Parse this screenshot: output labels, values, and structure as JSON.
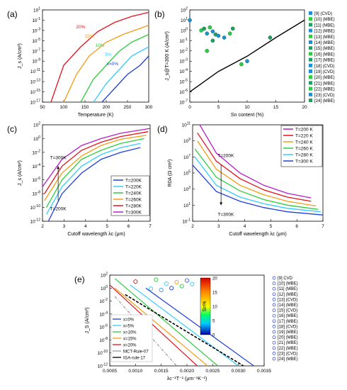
{
  "figure": {
    "panels": [
      {
        "id": "a",
        "label": "(a)"
      },
      {
        "id": "b",
        "label": "(b)"
      },
      {
        "id": "c",
        "label": "(c)"
      },
      {
        "id": "d",
        "label": "(d)"
      },
      {
        "id": "e",
        "label": "(e)"
      }
    ]
  },
  "chart_data": [
    {
      "id": "a",
      "type": "line",
      "xlabel": "Temperature (K)",
      "ylabel": "J_s (A/cm²)",
      "xlim": [
        50,
        300
      ],
      "ylim": [
        1e-17,
        1000.0
      ],
      "log_y": true,
      "xticks": [
        "50",
        "100",
        "150",
        "200",
        "250",
        "300"
      ],
      "yticks": [
        "10^1",
        "10^-1",
        "10^-3",
        "10^-5",
        "10^-7",
        "10^-9",
        "10^-11",
        "10^-13",
        "10^-15",
        "10^-17"
      ],
      "series": [
        {
          "name": "20%",
          "color": "#e0141c",
          "x": [
            70,
            100,
            140,
            180,
            220,
            260,
            300
          ],
          "y": [
            1e-17,
            1e-09,
            1e-05,
            0.02,
            2,
            40,
            300
          ]
        },
        {
          "name": "15%",
          "color": "#f39c12",
          "x": [
            100,
            130,
            160,
            200,
            240,
            280,
            300
          ],
          "y": [
            1e-17,
            1e-11,
            1e-07,
            0.0001,
            0.005,
            0.1,
            0.5
          ]
        },
        {
          "name": "10%",
          "color": "#2ecc40",
          "x": [
            140,
            170,
            200,
            230,
            260,
            300
          ],
          "y": [
            1e-17,
            1e-12,
            1e-09,
            1e-06,
            0.0001,
            0.005
          ]
        },
        {
          "name": "5%",
          "color": "#33ccff",
          "x": [
            170,
            200,
            230,
            260,
            300
          ],
          "y": [
            1e-17,
            1e-13,
            1e-10,
            1e-07,
            1e-05
          ]
        },
        {
          "name": "x=0%",
          "color": "#1f3fd8",
          "x": [
            190,
            220,
            250,
            280,
            300
          ],
          "y": [
            1e-17,
            1e-14,
            1e-11,
            1e-09,
            1e-07
          ]
        }
      ]
    },
    {
      "id": "b",
      "type": "scatter",
      "xlabel": "Sn content (%)",
      "ylabel": "J_s@T=300 K (A/cm²)",
      "xlim": [
        0,
        20
      ],
      "ylim": [
        1e-07,
        100
      ],
      "log_y": true,
      "xticks": [
        "0",
        "5",
        "10",
        "15",
        "20"
      ],
      "yticks": [
        "10^2",
        "10^1",
        "10^0",
        "10^-1",
        "10^-2",
        "10^-3",
        "10^-4",
        "10^-5",
        "10^-6",
        "10^-7"
      ],
      "line": {
        "x": [
          0,
          5,
          10,
          15,
          20
        ],
        "y": [
          1e-06,
          0.0001,
          0.003,
          0.2,
          10
        ]
      },
      "legend": [
        "[9] (CVD)",
        "[10] (MBE)",
        "[11] (MBE)",
        "[12] (MBE)",
        "[13] (MBE)",
        "[14] (MBE)",
        "[15] (MBE)",
        "[16] (MBE)",
        "[17] (MBE)",
        "[18] (CVD)",
        "[19] (CVD)",
        "[20] (MBE)",
        "[21] (MBE)",
        "[22] (MBE)",
        "[23] (CVD)",
        "[24] (MBE)"
      ],
      "points": [
        {
          "x": 0,
          "y": 10
        },
        {
          "x": 2,
          "y": 1
        },
        {
          "x": 2.5,
          "y": 1.5
        },
        {
          "x": 3,
          "y": 0.5
        },
        {
          "x": 3.5,
          "y": 2
        },
        {
          "x": 4,
          "y": 0.8
        },
        {
          "x": 4,
          "y": 0.1
        },
        {
          "x": 3,
          "y": 0.01
        },
        {
          "x": 4.5,
          "y": 0.4
        },
        {
          "x": 5,
          "y": 0.3
        },
        {
          "x": 6,
          "y": 0.2
        },
        {
          "x": 7,
          "y": 0.5
        },
        {
          "x": 7.5,
          "y": 1.5
        },
        {
          "x": 9,
          "y": 0.0005
        },
        {
          "x": 10,
          "y": 0.001
        },
        {
          "x": 14,
          "y": 0.2
        }
      ]
    },
    {
      "id": "c",
      "type": "line",
      "xlabel": "Cutoff wavelength λc (μm)",
      "ylabel": "J_s (A/cm²)",
      "xlim": [
        1.5,
        7
      ],
      "ylim": [
        1e-12,
        100.0
      ],
      "log_y": true,
      "xticks": [
        "2",
        "3",
        "4",
        "5",
        "6",
        "7"
      ],
      "yticks": [
        "10^2",
        "10^0",
        "10^-2",
        "10^-4",
        "10^-6",
        "10^-8",
        "10^-10",
        "10^-12"
      ],
      "annotations": [
        "T=300K",
        "T=200K"
      ],
      "series": [
        {
          "name": "T=200K",
          "color": "#1f3fd8",
          "x": [
            1.8,
            2.5,
            3.5,
            4.5,
            5.5,
            6.5
          ],
          "y": [
            1e-12,
            1e-08,
            1e-05,
            0.001,
            0.01,
            0.05
          ]
        },
        {
          "name": "T=220K",
          "color": "#33ccff",
          "x": [
            1.7,
            2.5,
            3.5,
            4.5,
            5.5,
            6.5
          ],
          "y": [
            1e-11,
            1e-07,
            0.0001,
            0.005,
            0.05,
            0.2
          ]
        },
        {
          "name": "T=240K",
          "color": "#2ecc40",
          "x": [
            1.7,
            2.5,
            3.5,
            4.5,
            5.5,
            6.7
          ],
          "y": [
            1e-10,
            1e-06,
            0.001,
            0.02,
            0.2,
            1
          ]
        },
        {
          "name": "T=260K",
          "color": "#f39c12",
          "x": [
            1.6,
            2.5,
            3.5,
            4.5,
            5.5,
            6.8
          ],
          "y": [
            1e-09,
            1e-05,
            0.003,
            0.1,
            0.8,
            3
          ]
        },
        {
          "name": "T=280K",
          "color": "#e0141c",
          "x": [
            1.6,
            2.5,
            3.5,
            4.5,
            5.5,
            6.9
          ],
          "y": [
            1e-08,
            0.0001,
            0.02,
            0.3,
            2,
            10
          ]
        },
        {
          "name": "T=300K",
          "color": "#b41ec8",
          "x": [
            1.5,
            2.5,
            3.5,
            4.5,
            5.5,
            7
          ],
          "y": [
            1e-07,
            0.001,
            0.1,
            1,
            6,
            30
          ]
        }
      ]
    },
    {
      "id": "d",
      "type": "line",
      "xlabel": "Cutoff wavelength λc (μm)",
      "ylabel": "R0A (Ω cm²)",
      "xlim": [
        1.5,
        7
      ],
      "ylim": [
        0.1,
        100000000000.0
      ],
      "log_y": true,
      "xticks": [
        "2",
        "3",
        "4",
        "5",
        "6",
        "7"
      ],
      "yticks": [
        "10^11",
        "10^9",
        "10^7",
        "10^5",
        "10^3",
        "10^1",
        "10^-1"
      ],
      "annotations": [
        "T=200K",
        "T=300K"
      ],
      "series": [
        {
          "name": "T=200 K",
          "color": "#b41ec8",
          "x": [
            1.8,
            2.5,
            3.5,
            4.5,
            5.5,
            6.5
          ],
          "y": [
            100000000000.0,
            30000000.0,
            100000.0,
            3000.0,
            300,
            80
          ]
        },
        {
          "name": "T=220 K",
          "color": "#e0141c",
          "x": [
            1.7,
            2.5,
            3.5,
            4.5,
            5.5,
            6.5
          ],
          "y": [
            10000000000.0,
            3000000.0,
            20000.0,
            800,
            100,
            30
          ]
        },
        {
          "name": "T=240 K",
          "color": "#f39c12",
          "x": [
            1.7,
            2.5,
            3.5,
            4.5,
            5.5,
            6.7
          ],
          "y": [
            1000000000.0,
            300000.0,
            3000.0,
            200,
            30,
            8
          ]
        },
        {
          "name": "T=260 K",
          "color": "#2ecc40",
          "x": [
            1.6,
            2.5,
            3.5,
            4.5,
            5.5,
            6.8
          ],
          "y": [
            100000000.0,
            30000.0,
            600,
            50,
            10,
            3
          ]
        },
        {
          "name": "T=280 K",
          "color": "#33ccff",
          "x": [
            1.6,
            2.5,
            3.5,
            4.5,
            5.5,
            6.9
          ],
          "y": [
            10000000.0,
            3000.0,
            100,
            15,
            4,
            1.5
          ]
        },
        {
          "name": "T=300 K",
          "color": "#1f3fd8",
          "x": [
            1.5,
            2.5,
            3.5,
            4.5,
            5.5,
            7
          ],
          "y": [
            1000000.0,
            500,
            30,
            5,
            1.5,
            0.6
          ]
        }
      ]
    },
    {
      "id": "e",
      "type": "scatter",
      "xlabel": "λc⁻¹T⁻¹ (μm⁻¹K⁻¹)",
      "ylabel": "J_S (A/cm²)",
      "xlim": [
        0.0005,
        0.0035
      ],
      "ylim": [
        1e-12,
        100.0
      ],
      "log_y": true,
      "xticks": [
        "0.0005",
        "0.0010",
        "0.0015",
        "0.0020",
        "0.0025",
        "0.0030",
        "0.0035"
      ],
      "yticks": [
        "10^2",
        "10^0",
        "10^-2",
        "10^-4",
        "10^-6",
        "10^-8",
        "10^-10",
        "10^-12"
      ],
      "colorbar": {
        "title": "Sn%",
        "ticks": [
          "20",
          "15",
          "10",
          "5",
          "0"
        ]
      },
      "line_legend": [
        "x=0%",
        "x=5%",
        "x=10%",
        "x=15%",
        "x=20%",
        "MCT-Rule-07",
        "IGA-rule-17"
      ],
      "line_colors": [
        "#1f3fd8",
        "#33ccff",
        "#2ecc40",
        "#f39c12",
        "#e0141c",
        "#999999",
        "#000000"
      ],
      "lines": [
        {
          "x": [
            0.0012,
            0.0033
          ],
          "y": [
            1,
            1e-12
          ]
        },
        {
          "x": [
            0.0009,
            0.003
          ],
          "y": [
            3,
            1e-12
          ]
        },
        {
          "x": [
            0.0006,
            0.0026
          ],
          "y": [
            30,
            1e-12
          ]
        },
        {
          "x": [
            0.0006,
            0.0024
          ],
          "y": [
            1,
            1e-12
          ]
        },
        {
          "x": [
            0.0005,
            0.0022
          ],
          "y": [
            3,
            1e-12
          ]
        },
        {
          "x": [
            0.0006,
            0.0018
          ],
          "y": [
            0.05,
            1e-12
          ]
        },
        {
          "x": [
            0.0008,
            0.0031
          ],
          "y": [
            0.1,
            1e-12
          ]
        }
      ],
      "marker_legend": [
        "[9] CVD",
        "[10] (MBE)",
        "[11] (MBE)",
        "[12] (MBE)",
        "[13] (CVD)",
        "[14] (MBE)",
        "[15] (CVD)",
        "[16] (MBE)",
        "[17] (MBE)",
        "[18] (CVD)",
        "[19] (MBE)",
        "[20] (MBE)",
        "[21] (MBE)",
        "[22] (MBE)",
        "[23] (CVD)",
        "[24] (MBE)"
      ],
      "points": [
        {
          "x": 0.001,
          "y": 10
        },
        {
          "x": 0.0014,
          "y": 20
        },
        {
          "x": 0.0016,
          "y": 5
        },
        {
          "x": 0.0018,
          "y": 8
        },
        {
          "x": 0.002,
          "y": 15
        },
        {
          "x": 0.0021,
          "y": 4
        },
        {
          "x": 0.0019,
          "y": 2
        },
        {
          "x": 0.0017,
          "y": 1
        },
        {
          "x": 0.0015,
          "y": 0.5
        },
        {
          "x": 0.0013,
          "y": 0.8
        }
      ]
    }
  ]
}
